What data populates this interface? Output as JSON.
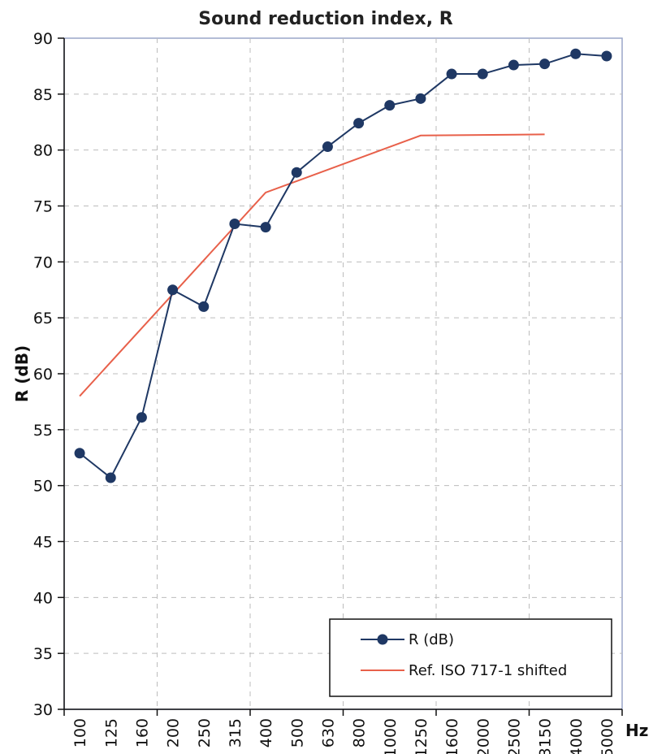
{
  "chart_data": {
    "type": "line",
    "title": "Sound reduction index, R",
    "ylabel": "R (dB)",
    "xunit": "Hz",
    "categories": [
      "100",
      "125",
      "160",
      "200",
      "250",
      "315",
      "400",
      "500",
      "630",
      "800",
      "1000",
      "1250",
      "1600",
      "2000",
      "2500",
      "3150",
      "4000",
      "5000"
    ],
    "ylim": [
      30,
      90
    ],
    "yticks": [
      30,
      35,
      40,
      45,
      50,
      55,
      60,
      65,
      70,
      75,
      80,
      85,
      90
    ],
    "grid": true,
    "legend_position": "bottom-right",
    "series": [
      {
        "name": "R (dB)",
        "color": "#1f3864",
        "marker": "circle",
        "values": [
          52.9,
          50.7,
          56.1,
          67.5,
          66.0,
          73.4,
          73.1,
          78.0,
          80.3,
          82.4,
          84.0,
          84.6,
          86.8,
          86.8,
          87.6,
          87.7,
          88.6,
          88.4
        ]
      },
      {
        "name": "Ref. ISO 717-1 shifted",
        "color": "#e8604a",
        "marker": "none",
        "points": [
          {
            "x": "100",
            "y": 58.0
          },
          {
            "x": "400",
            "y": 76.2
          },
          {
            "x": "1250",
            "y": 81.3
          },
          {
            "x": "3150",
            "y": 81.4
          }
        ]
      }
    ]
  }
}
